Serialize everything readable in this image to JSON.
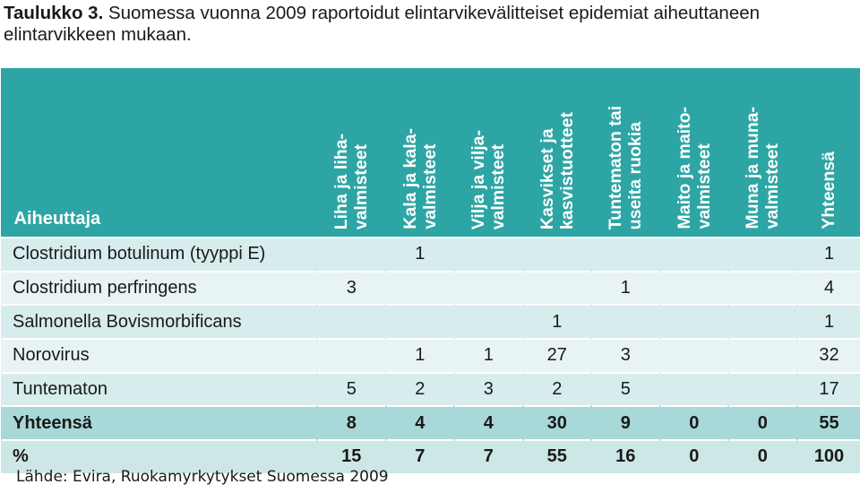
{
  "caption": {
    "label": "Taulukko 3.",
    "text": " Suomessa vuonna 2009 raportoidut elintarvikevälitteiset epidemiat aiheuttaneen elintarvikkeen mukaan."
  },
  "table": {
    "agent_header": "Aiheuttaja",
    "columns": [
      "Liha ja liha-\nvalmisteet",
      "Kala ja kala-\nvalmisteet",
      "Vilja ja vilja-\nvalmisteet",
      "Kasvikset ja\nkasvistuotteet",
      "Tuntematon tai\nuseita ruokia",
      "Maito ja maito-\nvalmisteet",
      "Muna ja muna-\nvalmisteet",
      "Yhteensä"
    ],
    "rows": [
      {
        "agent": "Clostridium botulinum (tyyppi E)",
        "values": [
          "",
          "1",
          "",
          "",
          "",
          "",
          "",
          "1"
        ]
      },
      {
        "agent": "Clostridium perfringens",
        "values": [
          "3",
          "",
          "",
          "",
          "1",
          "",
          "",
          "4"
        ]
      },
      {
        "agent": "Salmonella Bovismorbificans",
        "values": [
          "",
          "",
          "",
          "1",
          "",
          "",
          "",
          "1"
        ]
      },
      {
        "agent": "Norovirus",
        "values": [
          "",
          "1",
          "1",
          "27",
          "3",
          "",
          "",
          "32"
        ]
      },
      {
        "agent": "Tuntematon",
        "values": [
          "5",
          "2",
          "3",
          "2",
          "5",
          "",
          "",
          "17"
        ]
      }
    ],
    "total_row": {
      "agent": "Yhteensä",
      "values": [
        "8",
        "4",
        "4",
        "30",
        "9",
        "0",
        "0",
        "55"
      ]
    },
    "percent_row": {
      "agent": "%",
      "values": [
        "15",
        "7",
        "7",
        "55",
        "16",
        "0",
        "0",
        "100"
      ]
    }
  },
  "source": "Lähde: Evira, Ruokamyrkytykset Suomessa 2009",
  "colors": {
    "header_bg": "#2ea5a5",
    "row_dark": "#d7ecec",
    "row_light": "#e8f4f4",
    "total_bg": "#a9d8d8",
    "percent_bg": "#cde6e6"
  }
}
